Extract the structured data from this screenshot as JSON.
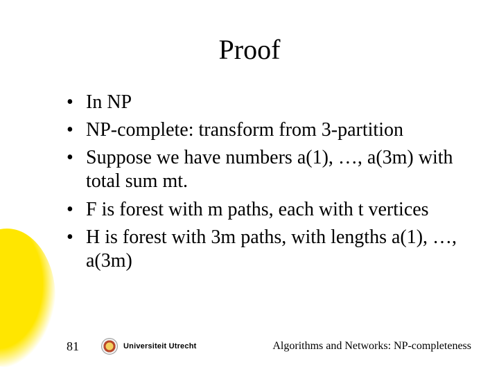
{
  "title": "Proof",
  "bullets": [
    "In NP",
    "NP-complete: transform from 3-partition",
    "Suppose we have numbers a(1), …, a(3m) with total sum mt.",
    "F is forest with m paths, each with t vertices",
    "H is forest with 3m paths, with lengths a(1), …, a(3m)"
  ],
  "footer": {
    "slide_number": "81",
    "logo_text": "Universiteit Utrecht",
    "right_text": "Algorithms and Networks: NP-completeness"
  },
  "style": {
    "background_color": "#ffffff",
    "accent_color": "#ffe600",
    "title_fontsize_pt": 30,
    "body_fontsize_pt": 21,
    "footer_fontsize_pt": 12,
    "font_family": "Times New Roman",
    "text_color": "#000000"
  }
}
